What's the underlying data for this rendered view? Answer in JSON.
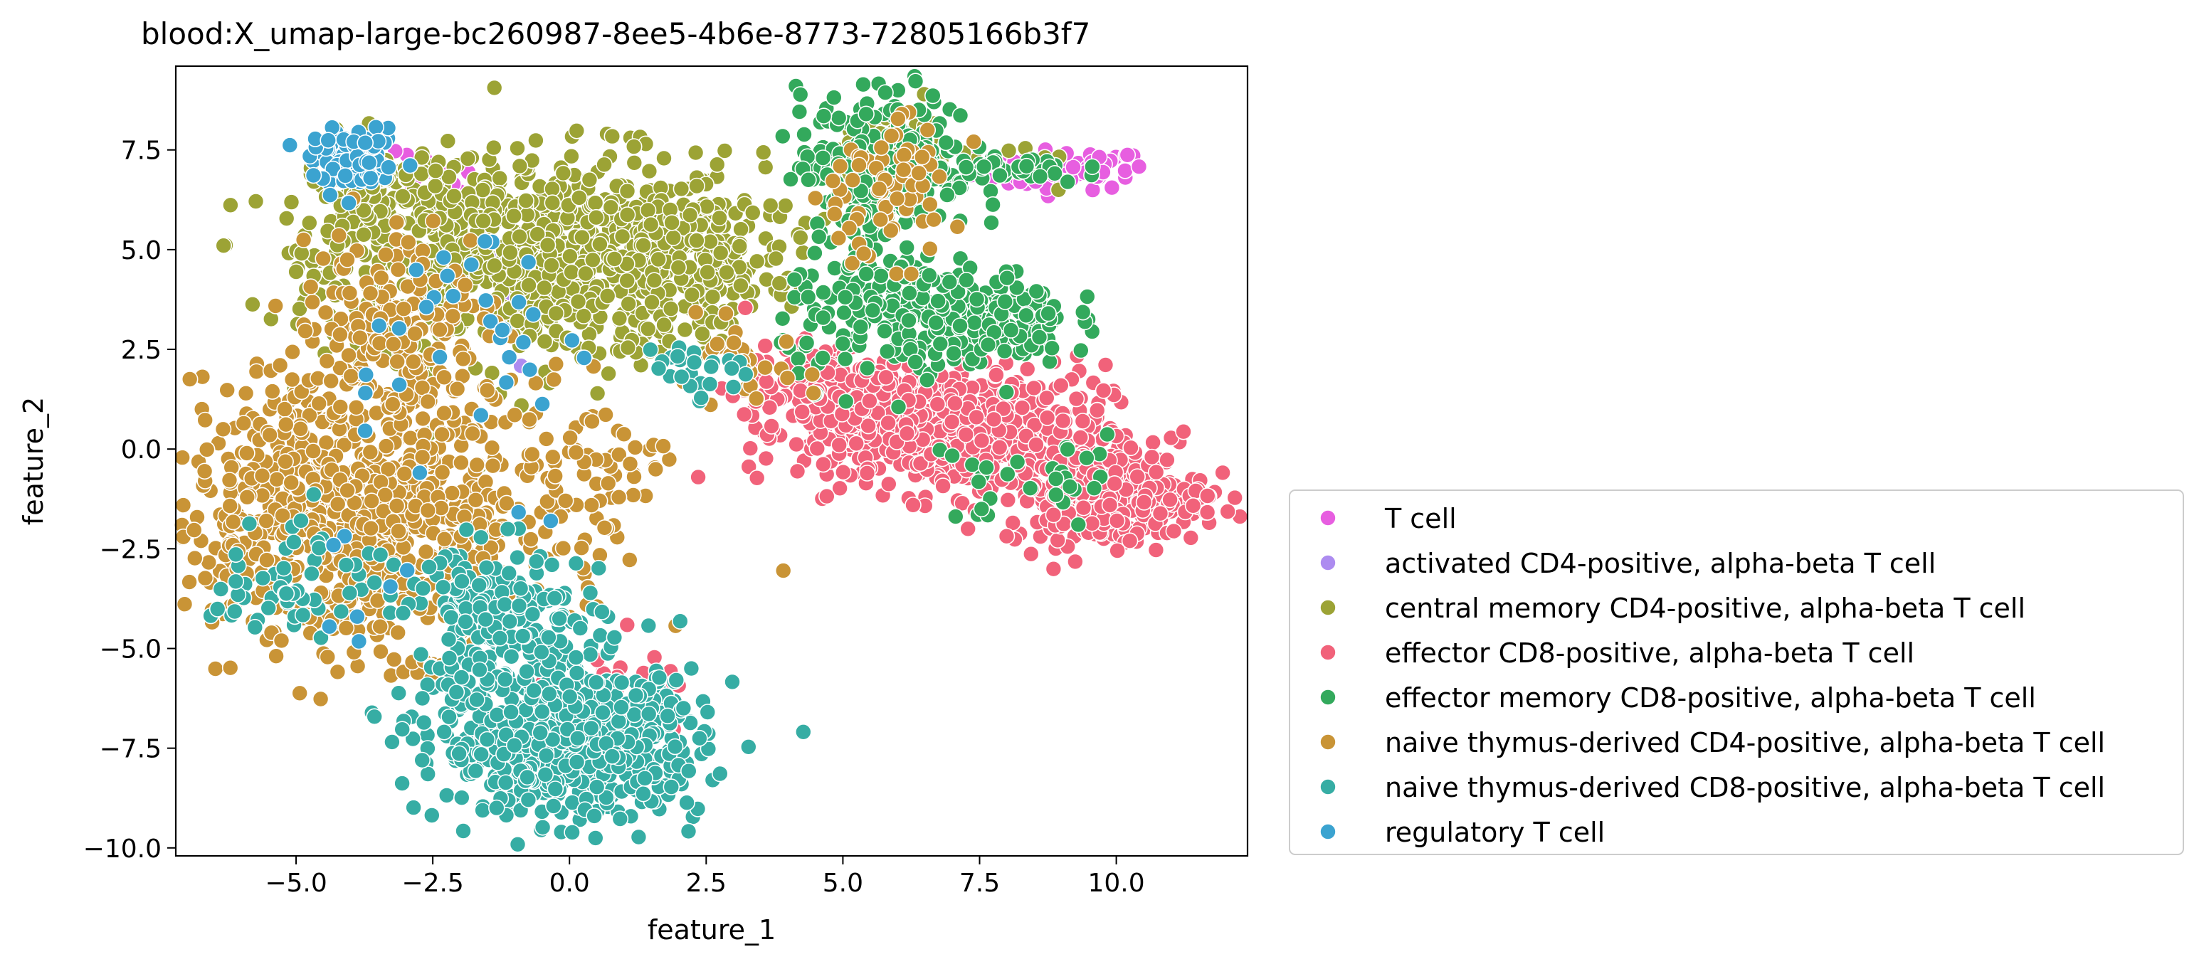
{
  "chart_data": {
    "type": "scatter",
    "title": "blood:X_umap-large-bc260987-8ee5-4b6e-8773-72805166b3f7",
    "xlabel": "feature_1",
    "ylabel": "feature_2",
    "xlim": [
      -7.2,
      12.4
    ],
    "ylim": [
      -10.2,
      9.6
    ],
    "xticks": [
      -5.0,
      -2.5,
      0.0,
      2.5,
      5.0,
      7.5,
      10.0
    ],
    "yticks": [
      -10.0,
      -7.5,
      -5.0,
      -2.5,
      0.0,
      2.5,
      5.0,
      7.5
    ],
    "xtick_labels": [
      "−5.0",
      "−2.5",
      "0.0",
      "2.5",
      "5.0",
      "7.5",
      "10.0"
    ],
    "ytick_labels": [
      "−10.0",
      "−7.5",
      "−5.0",
      "−2.5",
      "0.0",
      "2.5",
      "5.0",
      "7.5"
    ],
    "grid": false,
    "legend_position": "right, outside plot, lower",
    "series": [
      {
        "name": "T cell",
        "color": "#e75ee0",
        "clusters": [
          {
            "cx": 9.0,
            "cy": 7.0,
            "sx": 0.8,
            "sy": 0.25,
            "n": 70
          },
          {
            "cx": 10.5,
            "cy": -0.8,
            "sx": 0.4,
            "sy": 0.3,
            "n": 15
          },
          {
            "cx": -2.6,
            "cy": 6.6,
            "sx": 0.5,
            "sy": 0.4,
            "n": 15
          }
        ]
      },
      {
        "name": "activated CD4-positive, alpha-beta T cell",
        "color": "#ad8cf0",
        "clusters": [
          {
            "cx": -1.5,
            "cy": 3.5,
            "sx": 1.2,
            "sy": 1.0,
            "n": 8
          }
        ]
      },
      {
        "name": "central memory CD4-positive, alpha-beta T cell",
        "color": "#9ca335",
        "clusters": [
          {
            "cx": -0.5,
            "cy": 4.8,
            "sx": 2.0,
            "sy": 1.3,
            "n": 820
          },
          {
            "cx": 2.3,
            "cy": 4.8,
            "sx": 0.9,
            "sy": 0.8,
            "n": 160
          },
          {
            "cx": -3.5,
            "cy": 6.0,
            "sx": 0.7,
            "sy": 0.9,
            "n": 110
          },
          {
            "cx": 5.8,
            "cy": 7.6,
            "sx": 0.6,
            "sy": 0.5,
            "n": 60
          },
          {
            "cx": 8.5,
            "cy": 7.0,
            "sx": 0.4,
            "sy": 0.2,
            "n": 10
          }
        ]
      },
      {
        "name": "effector CD8-positive, alpha-beta T cell",
        "color": "#f1627a",
        "clusters": [
          {
            "cx": 7.0,
            "cy": 0.5,
            "sx": 1.4,
            "sy": 0.8,
            "n": 520
          },
          {
            "cx": 9.8,
            "cy": -1.2,
            "sx": 0.9,
            "sy": 0.6,
            "n": 320
          },
          {
            "cx": 4.8,
            "cy": 1.4,
            "sx": 0.8,
            "sy": 0.6,
            "n": 170
          },
          {
            "cx": 0.8,
            "cy": -6.2,
            "sx": 0.7,
            "sy": 0.5,
            "n": 35
          }
        ]
      },
      {
        "name": "effector memory CD8-positive, alpha-beta T cell",
        "color": "#33a95c",
        "clusters": [
          {
            "cx": 5.8,
            "cy": 7.2,
            "sx": 0.8,
            "sy": 0.9,
            "n": 240
          },
          {
            "cx": 7.5,
            "cy": 3.3,
            "sx": 0.8,
            "sy": 0.6,
            "n": 200
          },
          {
            "cx": 5.7,
            "cy": 3.5,
            "sx": 0.9,
            "sy": 0.9,
            "n": 150
          },
          {
            "cx": 8.2,
            "cy": 7.0,
            "sx": 0.6,
            "sy": 0.2,
            "n": 30
          },
          {
            "cx": 8.5,
            "cy": -0.8,
            "sx": 1.0,
            "sy": 0.6,
            "n": 30
          }
        ]
      },
      {
        "name": "naive thymus-derived CD4-positive, alpha-beta T cell",
        "color": "#c99436",
        "clusters": [
          {
            "cx": -3.8,
            "cy": -1.5,
            "sx": 1.8,
            "sy": 1.7,
            "n": 880
          },
          {
            "cx": -3.2,
            "cy": 3.2,
            "sx": 0.9,
            "sy": 1.3,
            "n": 160
          },
          {
            "cx": 0.5,
            "cy": -0.6,
            "sx": 0.6,
            "sy": 0.9,
            "n": 45
          },
          {
            "cx": 5.7,
            "cy": 6.5,
            "sx": 0.7,
            "sy": 0.9,
            "n": 70
          },
          {
            "cx": 3.2,
            "cy": 2.0,
            "sx": 0.6,
            "sy": 0.5,
            "n": 30
          }
        ]
      },
      {
        "name": "naive thymus-derived CD8-positive, alpha-beta T cell",
        "color": "#36ada4",
        "clusters": [
          {
            "cx": 0.0,
            "cy": -7.4,
            "sx": 1.2,
            "sy": 0.9,
            "n": 680
          },
          {
            "cx": -1.2,
            "cy": -4.4,
            "sx": 0.9,
            "sy": 1.0,
            "n": 220
          },
          {
            "cx": -5.0,
            "cy": -3.2,
            "sx": 0.8,
            "sy": 0.8,
            "n": 60
          },
          {
            "cx": 2.3,
            "cy": 2.0,
            "sx": 0.5,
            "sy": 0.4,
            "n": 25
          }
        ]
      },
      {
        "name": "regulatory T cell",
        "color": "#3ba3d0",
        "clusters": [
          {
            "cx": -3.9,
            "cy": 7.2,
            "sx": 0.4,
            "sy": 0.35,
            "n": 90
          },
          {
            "cx": -1.5,
            "cy": 3.0,
            "sx": 1.5,
            "sy": 1.5,
            "n": 30
          },
          {
            "cx": -3.0,
            "cy": -2.0,
            "sx": 1.5,
            "sy": 1.5,
            "n": 12
          }
        ]
      }
    ]
  }
}
